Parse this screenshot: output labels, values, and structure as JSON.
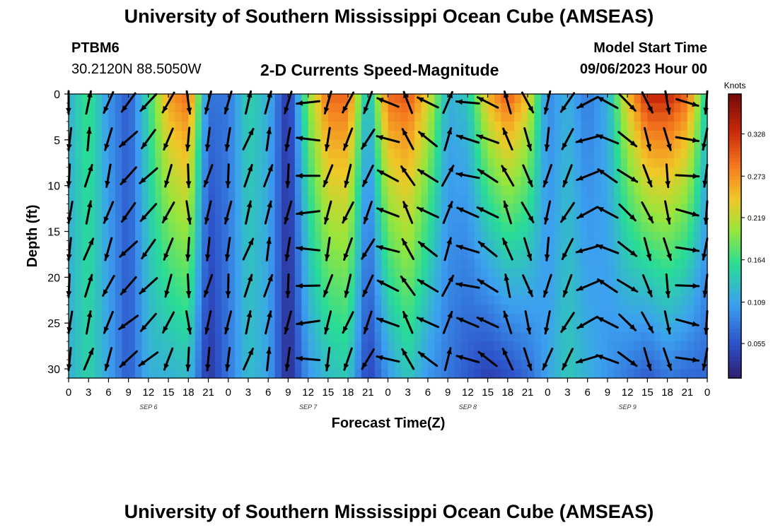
{
  "header": {
    "title": "University of Southern Mississippi Ocean Cube (AMSEAS)",
    "station": "PTBM6",
    "coords": "30.2120N  88.5050W",
    "plot_title": "2-D Currents Speed-Magnitude",
    "model_start_label": "Model Start Time",
    "model_start_value": "09/06/2023 Hour 00"
  },
  "footer": {
    "title": "University of Southern Mississippi Ocean Cube (AMSEAS)"
  },
  "chart_data": {
    "type": "heatmap",
    "title": "2-D Currents Speed-Magnitude",
    "xlabel": "Forecast Time(Z)",
    "ylabel": "Depth (ft)",
    "x_tick_labels": [
      "0",
      "3",
      "6",
      "9",
      "12",
      "15",
      "18",
      "21",
      "0",
      "3",
      "6",
      "9",
      "12",
      "15",
      "18",
      "21",
      "0",
      "3",
      "6",
      "9",
      "12",
      "15",
      "18",
      "21",
      "0",
      "3",
      "6",
      "9",
      "12",
      "15",
      "18",
      "21",
      "0"
    ],
    "day_labels": [
      {
        "label": "SEP 6",
        "hour": 12
      },
      {
        "label": "SEP 7",
        "hour": 36
      },
      {
        "label": "SEP 8",
        "hour": 60
      },
      {
        "label": "SEP 9",
        "hour": 84
      }
    ],
    "xlim": [
      0,
      96
    ],
    "ylim": [
      0,
      31
    ],
    "y_ticks": [
      0,
      5,
      10,
      15,
      20,
      25,
      30
    ],
    "colorbar": {
      "label": "Knots",
      "ticks": [
        "0.055",
        "0.109",
        "0.164",
        "0.219",
        "0.273",
        "0.328"
      ],
      "range": [
        0.01,
        0.38
      ]
    },
    "speed_profile_knots_by_hour": [
      {
        "hour": 0,
        "surface": 0.12,
        "bottom": 0.12
      },
      {
        "hour": 3,
        "surface": 0.17,
        "bottom": 0.15
      },
      {
        "hour": 6,
        "surface": 0.1,
        "bottom": 0.11
      },
      {
        "hour": 9,
        "surface": 0.06,
        "bottom": 0.06
      },
      {
        "hour": 12,
        "surface": 0.16,
        "bottom": 0.12
      },
      {
        "hour": 15,
        "surface": 0.27,
        "bottom": 0.12
      },
      {
        "hour": 18,
        "surface": 0.3,
        "bottom": 0.13
      },
      {
        "hour": 21,
        "surface": 0.08,
        "bottom": 0.03
      },
      {
        "hour": 24,
        "surface": 0.08,
        "bottom": 0.08
      },
      {
        "hour": 27,
        "surface": 0.15,
        "bottom": 0.13
      },
      {
        "hour": 30,
        "surface": 0.12,
        "bottom": 0.11
      },
      {
        "hour": 33,
        "surface": 0.03,
        "bottom": 0.02
      },
      {
        "hour": 36,
        "surface": 0.2,
        "bottom": 0.1
      },
      {
        "hour": 39,
        "surface": 0.3,
        "bottom": 0.13
      },
      {
        "hour": 42,
        "surface": 0.3,
        "bottom": 0.14
      },
      {
        "hour": 45,
        "surface": 0.12,
        "bottom": 0.04
      },
      {
        "hour": 48,
        "surface": 0.3,
        "bottom": 0.1
      },
      {
        "hour": 51,
        "surface": 0.31,
        "bottom": 0.14
      },
      {
        "hour": 54,
        "surface": 0.24,
        "bottom": 0.1
      },
      {
        "hour": 57,
        "surface": 0.12,
        "bottom": 0.08
      },
      {
        "hour": 60,
        "surface": 0.14,
        "bottom": 0.06
      },
      {
        "hour": 63,
        "surface": 0.26,
        "bottom": 0.04
      },
      {
        "hour": 66,
        "surface": 0.31,
        "bottom": 0.05
      },
      {
        "hour": 69,
        "surface": 0.25,
        "bottom": 0.07
      },
      {
        "hour": 72,
        "surface": 0.09,
        "bottom": 0.11
      },
      {
        "hour": 75,
        "surface": 0.12,
        "bottom": 0.14
      },
      {
        "hour": 78,
        "surface": 0.08,
        "bottom": 0.12
      },
      {
        "hour": 81,
        "surface": 0.12,
        "bottom": 0.1
      },
      {
        "hour": 84,
        "surface": 0.25,
        "bottom": 0.08
      },
      {
        "hour": 87,
        "surface": 0.34,
        "bottom": 0.06
      },
      {
        "hour": 90,
        "surface": 0.34,
        "bottom": 0.08
      },
      {
        "hour": 93,
        "surface": 0.3,
        "bottom": 0.07
      },
      {
        "hour": 96,
        "surface": 0.14,
        "bottom": 0.07
      }
    ],
    "vector_depths_ft": [
      0,
      4,
      8,
      12,
      16,
      20,
      24,
      28
    ],
    "vector_direction_deg_by_hour": [
      190,
      15,
      200,
      225,
      225,
      205,
      180,
      195,
      190,
      20,
      15,
      190,
      270,
      195,
      200,
      205,
      290,
      330,
      300,
      20,
      285,
      300,
      340,
      160,
      195,
      210,
      250,
      300,
      130,
      160,
      170,
      100,
      195
    ]
  }
}
